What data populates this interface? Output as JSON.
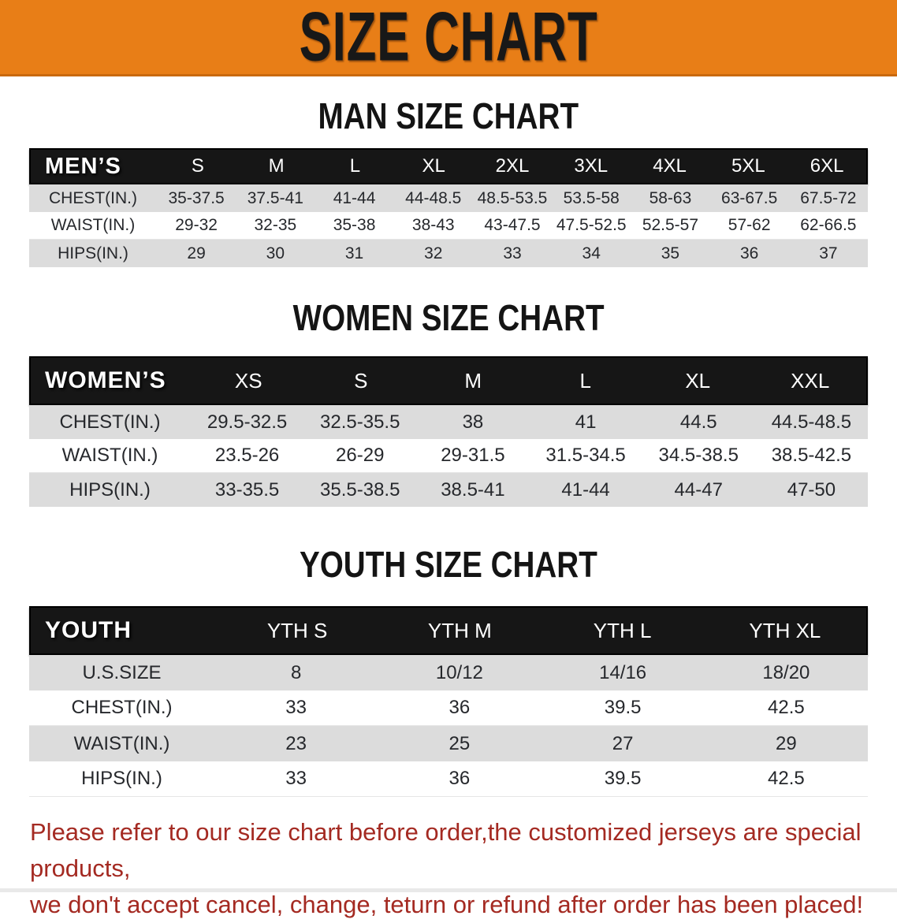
{
  "colors": {
    "banner_bg": "#e87e17",
    "banner_text": "#181818",
    "table_header_bg": "#161616",
    "table_header_text": "#ffffff",
    "row_stripe": "#dcdcdc",
    "disclaimer_text": "#a42a22"
  },
  "banner": {
    "title": "SIZE CHART"
  },
  "sections": [
    {
      "heading": "MAN SIZE CHART",
      "table": {
        "group_label": "MEN’S",
        "columns": [
          "S",
          "M",
          "L",
          "XL",
          "2XL",
          "3XL",
          "4XL",
          "5XL",
          "6XL"
        ],
        "rows": [
          {
            "label": "CHEST(IN.)",
            "values": [
              "35-37.5",
              "37.5-41",
              "41-44",
              "44-48.5",
              "48.5-53.5",
              "53.5-58",
              "58-63",
              "63-67.5",
              "67.5-72"
            ]
          },
          {
            "label": "WAIST(IN.)",
            "values": [
              "29-32",
              "32-35",
              "35-38",
              "38-43",
              "43-47.5",
              "47.5-52.5",
              "52.5-57",
              "57-62",
              "62-66.5"
            ]
          },
          {
            "label": "HIPS(IN.)",
            "values": [
              "29",
              "30",
              "31",
              "32",
              "33",
              "34",
              "35",
              "36",
              "37"
            ]
          }
        ]
      }
    },
    {
      "heading": "WOMEN SIZE CHART",
      "table": {
        "group_label": "WOMEN’S",
        "columns": [
          "XS",
          "S",
          "M",
          "L",
          "XL",
          "XXL"
        ],
        "rows": [
          {
            "label": "CHEST(IN.)",
            "values": [
              "29.5-32.5",
              "32.5-35.5",
              "38",
              "41",
              "44.5",
              "44.5-48.5"
            ]
          },
          {
            "label": "WAIST(IN.)",
            "values": [
              "23.5-26",
              "26-29",
              "29-31.5",
              "31.5-34.5",
              "34.5-38.5",
              "38.5-42.5"
            ]
          },
          {
            "label": "HIPS(IN.)",
            "values": [
              "33-35.5",
              "35.5-38.5",
              "38.5-41",
              "41-44",
              "44-47",
              "47-50"
            ]
          }
        ]
      }
    },
    {
      "heading": "YOUTH SIZE CHART",
      "table": {
        "group_label": "YOUTH",
        "columns": [
          "YTH S",
          "YTH M",
          "YTH L",
          "YTH XL"
        ],
        "rows": [
          {
            "label": "U.S.SIZE",
            "values": [
              "8",
              "10/12",
              "14/16",
              "18/20"
            ]
          },
          {
            "label": "CHEST(IN.)",
            "values": [
              "33",
              "36",
              "39.5",
              "42.5"
            ]
          },
          {
            "label": "WAIST(IN.)",
            "values": [
              "23",
              "25",
              "27",
              "29"
            ]
          },
          {
            "label": "HIPS(IN.)",
            "values": [
              "33",
              "36",
              "39.5",
              "42.5"
            ]
          }
        ]
      }
    }
  ],
  "disclaimer": {
    "line1": "Please refer to our size chart before order,the customized jerseys are special products,",
    "line2": "we don't accept cancel, change, teturn or refund after order has been placed!"
  }
}
